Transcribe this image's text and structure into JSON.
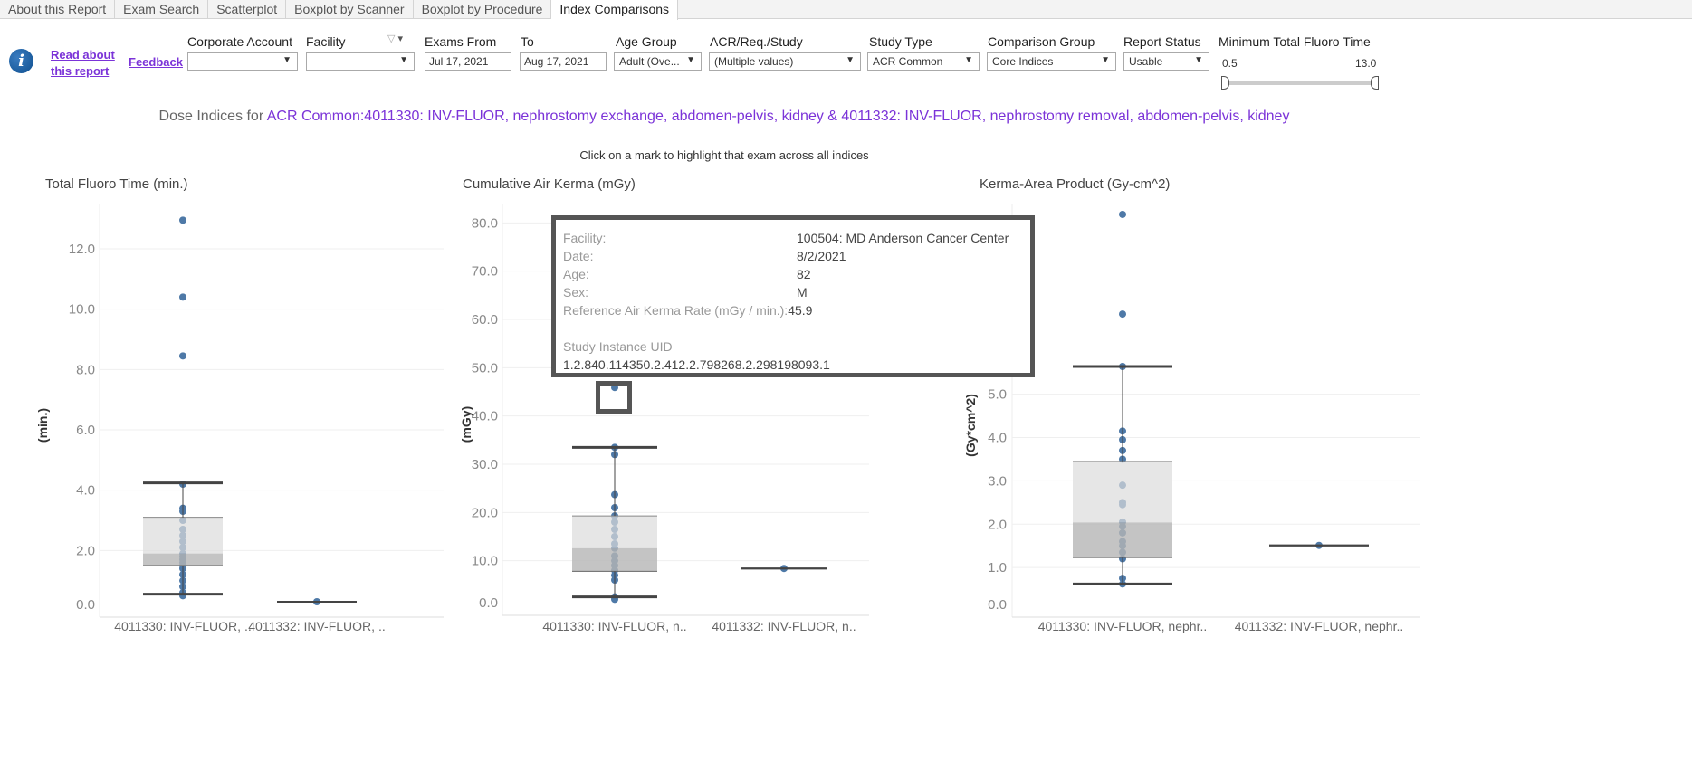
{
  "tabs": [
    "About this Report",
    "Exam Search",
    "Scatterplot",
    "Boxplot by Scanner",
    "Boxplot by Procedure",
    "Index Comparisons"
  ],
  "active_tab": "Index Comparisons",
  "links": {
    "read_about": "Read about this report",
    "feedback": "Feedback"
  },
  "filters": {
    "corporate_account": {
      "label": "Corporate Account",
      "value": ""
    },
    "facility": {
      "label": "Facility",
      "value": ""
    },
    "exams_from": {
      "label": "Exams From",
      "value": "Jul 17, 2021"
    },
    "to": {
      "label": "To",
      "value": "Aug 17, 2021"
    },
    "age_group": {
      "label": "Age Group",
      "value": "Adult (Ove..."
    },
    "acr_req_study": {
      "label": "ACR/Req./Study",
      "value": "(Multiple values)"
    },
    "study_type": {
      "label": "Study Type",
      "value": "ACR Common"
    },
    "comparison_group": {
      "label": "Comparison Group",
      "value": "Core Indices"
    },
    "report_status": {
      "label": "Report Status",
      "value": "Usable"
    },
    "min_fluoro": {
      "label": "Minimum Total Fluoro Time",
      "min": "0.5",
      "max": "13.0"
    }
  },
  "subtitle": {
    "prefix": "Dose Indices for ",
    "highlight": "ACR Common:4011330: INV-FLUOR, nephrostomy exchange, abdomen-pelvis, kidney & 4011332: INV-FLUOR, nephrostomy removal, abdomen-pelvis, kidney"
  },
  "hint": "Click on a mark to highlight that exam across all indices",
  "tooltip": {
    "rows": [
      [
        "Facility:",
        "100504: MD Anderson Cancer Center"
      ],
      [
        "Date:",
        "8/2/2021"
      ],
      [
        "Age:",
        "82"
      ],
      [
        "Sex:",
        "M"
      ]
    ],
    "rate_label": "Reference Air Kerma Rate (mGy / min.):",
    "rate_value": "45.9",
    "uid_label": "Study Instance UID",
    "uid_value": "1.2.840.114350.2.412.2.798268.2.298198093.1"
  },
  "chart_data": [
    {
      "type": "boxplot",
      "title": "Total Fluoro Time (min.)",
      "ylabel": "(min.)",
      "ylim": [
        0,
        13.5
      ],
      "ticks": [
        "0.0",
        "2.0",
        "4.0",
        "6.0",
        "8.0",
        "10.0",
        "12.0"
      ],
      "tickvals": [
        0,
        2,
        4,
        6,
        8,
        10,
        12
      ],
      "categories": [
        "4011330: INV-FLUOR, ..",
        "4011332: INV-FLUOR, .."
      ],
      "series": [
        {
          "points": [
            12.95,
            10.4,
            8.45,
            4.2,
            3.4,
            3.3,
            3.0,
            2.7,
            2.5,
            2.3,
            2.1,
            1.9,
            1.8,
            1.7,
            1.6,
            1.5,
            1.4,
            1.2,
            1.0,
            0.8,
            0.6,
            0.5
          ],
          "whisker_low": 0.55,
          "q1": 1.5,
          "median": 1.9,
          "q3": 3.1,
          "whisker_high": 4.24
        },
        {
          "points": [
            0.3
          ],
          "whisker_low": 0.3,
          "q1": 0.3,
          "median": 0.3,
          "q3": 0.3,
          "whisker_high": 0.3
        }
      ]
    },
    {
      "type": "boxplot",
      "title": "Cumulative Air Kerma (mGy)",
      "ylabel": "(mGy)",
      "ylim": [
        0,
        84
      ],
      "ticks": [
        "0.0",
        "10.0",
        "20.0",
        "30.0",
        "40.0",
        "50.0",
        "60.0",
        "70.0",
        "80.0"
      ],
      "tickvals": [
        0,
        10,
        20,
        30,
        40,
        50,
        60,
        70,
        80
      ],
      "categories": [
        "4011330: INV-FLUOR, n..",
        "4011332: INV-FLUOR, n.."
      ],
      "series": [
        {
          "points": [
            45.9,
            33.5,
            32.0,
            23.7,
            21.0,
            19.3,
            18.0,
            16.5,
            15.0,
            13.5,
            12.6,
            11.0,
            10.0,
            9.0,
            8.0,
            7.0,
            6.0,
            2.5,
            2.0
          ],
          "whisker_low": 2.5,
          "q1": 7.8,
          "median": 12.6,
          "q3": 19.3,
          "whisker_high": 33.5
        },
        {
          "points": [
            8.4
          ],
          "whisker_low": 8.4,
          "q1": 8.4,
          "median": 8.4,
          "q3": 8.4,
          "whisker_high": 8.4
        }
      ]
    },
    {
      "type": "boxplot",
      "title": "Kerma-Area Product (Gy-cm^2)",
      "ylabel": "(Gy*cm^2)",
      "ylim": [
        0,
        9.4
      ],
      "ticks": [
        "0.0",
        "1.0",
        "2.0",
        "3.0",
        "4.0",
        "5.0"
      ],
      "tickvals": [
        0,
        1,
        2,
        3,
        4,
        5
      ],
      "categories": [
        "4011330: INV-FLUOR, nephr..",
        "4011332: INV-FLUOR, nephr.."
      ],
      "series": [
        {
          "points": [
            9.15,
            6.85,
            5.64,
            4.15,
            3.95,
            3.7,
            3.5,
            2.9,
            2.5,
            2.45,
            2.05,
            1.95,
            1.8,
            1.6,
            1.5,
            1.35,
            1.2,
            0.75,
            0.62
          ],
          "whisker_low": 0.62,
          "q1": 1.23,
          "median": 2.04,
          "q3": 3.45,
          "whisker_high": 5.64
        },
        {
          "points": [
            1.51
          ],
          "whisker_low": 1.51,
          "q1": 1.51,
          "median": 1.51,
          "q3": 1.51,
          "whisker_high": 1.51
        }
      ]
    }
  ],
  "colors": {
    "point": "#4e79a7",
    "box_upper": "#dcdcdc",
    "box_lower": "#b5b5b5",
    "whisker": "#444444",
    "link": "#7b33d8"
  }
}
